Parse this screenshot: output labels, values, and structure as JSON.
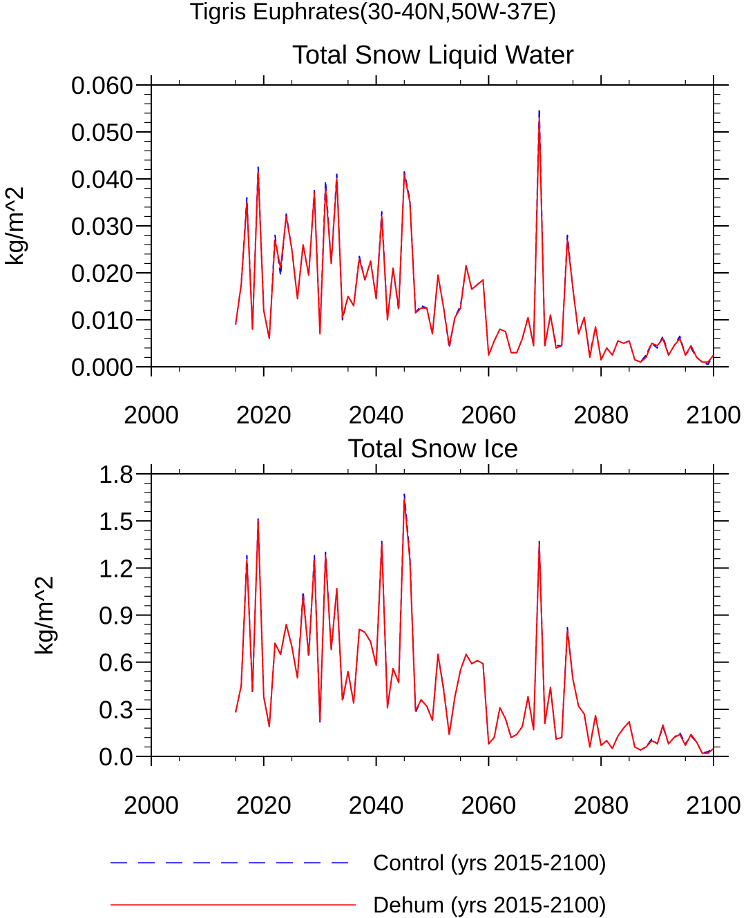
{
  "page_title": "Tigris Euphrates(30-40N,50W-37E)",
  "legend": {
    "entries": [
      {
        "label": "Control (yrs 2015-2100)",
        "color": "#0000ff",
        "style": "dashed"
      },
      {
        "label": "Dehum (yrs 2015-2100)",
        "color": "#ff0000",
        "style": "solid"
      }
    ],
    "placement": "bottom"
  },
  "chart_data": [
    {
      "type": "line",
      "title": "Total Snow Liquid Water",
      "xlabel": "",
      "ylabel": "kg/m^2",
      "xlim": [
        2000,
        2100
      ],
      "ylim": [
        0,
        0.06
      ],
      "xticks": [
        "2000",
        "2020",
        "2040",
        "2060",
        "2080",
        "2100"
      ],
      "yticks": [
        "0.000",
        "0.010",
        "0.020",
        "0.030",
        "0.040",
        "0.050",
        "0.060"
      ],
      "xtick_values": [
        2000,
        2020,
        2040,
        2060,
        2080,
        2100
      ],
      "ytick_values": [
        0,
        0.01,
        0.02,
        0.03,
        0.04,
        0.05,
        0.06
      ],
      "grid": false,
      "x_start": 2015,
      "series": [
        {
          "name": "Control (yrs 2015-2100)",
          "color": "#0000ff",
          "dash": "dashed",
          "values": [
            0.009,
            0.0175,
            0.036,
            0.008,
            0.0425,
            0.012,
            0.006,
            0.028,
            0.0195,
            0.0325,
            0.025,
            0.0145,
            0.026,
            0.0195,
            0.0375,
            0.0075,
            0.0395,
            0.022,
            0.041,
            0.01,
            0.015,
            0.013,
            0.0235,
            0.0185,
            0.0225,
            0.0145,
            0.033,
            0.01,
            0.021,
            0.012,
            0.0415,
            0.0355,
            0.0115,
            0.013,
            0.0125,
            0.007,
            0.0195,
            0.0125,
            0.004,
            0.0105,
            0.013,
            0.0215,
            0.0165,
            0.0175,
            0.0185,
            0.0025,
            0.0055,
            0.008,
            0.0075,
            0.003,
            0.003,
            0.006,
            0.0105,
            0.0045,
            0.055,
            0.0045,
            0.011,
            0.0045,
            0.0045,
            0.028,
            0.0165,
            0.007,
            0.0105,
            0.0025,
            0.0085,
            0.0015,
            0.004,
            0.0025,
            0.0055,
            0.005,
            0.0055,
            0.0015,
            0.001,
            0.0025,
            0.005,
            0.004,
            0.0065,
            0.0025,
            0.0045,
            0.0065,
            0.0025,
            0.004,
            0.002,
            0.001,
            0.0005,
            0.0025
          ]
        },
        {
          "name": "Dehum (yrs 2015-2100)",
          "color": "#ff0000",
          "dash": "solid",
          "values": [
            0.009,
            0.0175,
            0.035,
            0.008,
            0.0415,
            0.012,
            0.006,
            0.027,
            0.021,
            0.032,
            0.025,
            0.0145,
            0.026,
            0.0195,
            0.037,
            0.007,
            0.038,
            0.022,
            0.04,
            0.0105,
            0.015,
            0.013,
            0.023,
            0.0185,
            0.0225,
            0.0145,
            0.032,
            0.01,
            0.021,
            0.0125,
            0.041,
            0.035,
            0.0115,
            0.0125,
            0.0125,
            0.007,
            0.0195,
            0.0125,
            0.0045,
            0.0105,
            0.0125,
            0.0215,
            0.0165,
            0.0175,
            0.0185,
            0.0025,
            0.0055,
            0.008,
            0.0075,
            0.003,
            0.003,
            0.006,
            0.0105,
            0.0045,
            0.053,
            0.0045,
            0.011,
            0.004,
            0.0045,
            0.027,
            0.0165,
            0.007,
            0.0105,
            0.002,
            0.0085,
            0.0015,
            0.004,
            0.0025,
            0.0055,
            0.005,
            0.0055,
            0.0015,
            0.001,
            0.002,
            0.005,
            0.0045,
            0.006,
            0.0025,
            0.0045,
            0.006,
            0.0025,
            0.0045,
            0.002,
            0.001,
            0.001,
            0.0025
          ]
        }
      ]
    },
    {
      "type": "line",
      "title": "Total Snow Ice",
      "xlabel": "",
      "ylabel": "kg/m^2",
      "xlim": [
        2000,
        2100
      ],
      "ylim": [
        0,
        1.8
      ],
      "xticks": [
        "2000",
        "2020",
        "2040",
        "2060",
        "2080",
        "2100"
      ],
      "yticks": [
        "0.0",
        "0.3",
        "0.6",
        "0.9",
        "1.2",
        "1.5",
        "1.8"
      ],
      "xtick_values": [
        2000,
        2020,
        2040,
        2060,
        2080,
        2100
      ],
      "ytick_values": [
        0,
        0.3,
        0.6,
        0.9,
        1.2,
        1.5,
        1.8
      ],
      "grid": false,
      "x_start": 2015,
      "series": [
        {
          "name": "Control (yrs 2015-2100)",
          "color": "#0000ff",
          "dash": "dashed",
          "values": [
            0.28,
            0.45,
            1.28,
            0.4,
            1.52,
            0.38,
            0.19,
            0.72,
            0.65,
            0.84,
            0.7,
            0.5,
            1.05,
            0.63,
            1.28,
            0.22,
            1.3,
            0.68,
            1.06,
            0.35,
            0.54,
            0.34,
            0.81,
            0.79,
            0.73,
            0.58,
            1.37,
            0.31,
            0.56,
            0.47,
            1.67,
            1.28,
            0.28,
            0.36,
            0.32,
            0.23,
            0.65,
            0.43,
            0.14,
            0.38,
            0.55,
            0.65,
            0.59,
            0.61,
            0.59,
            0.08,
            0.12,
            0.31,
            0.24,
            0.12,
            0.14,
            0.19,
            0.38,
            0.17,
            1.37,
            0.21,
            0.44,
            0.11,
            0.12,
            0.82,
            0.49,
            0.32,
            0.27,
            0.06,
            0.26,
            0.07,
            0.1,
            0.05,
            0.13,
            0.18,
            0.22,
            0.06,
            0.04,
            0.06,
            0.11,
            0.08,
            0.19,
            0.08,
            0.12,
            0.15,
            0.08,
            0.13,
            0.09,
            0.02,
            0.03,
            0.05
          ]
        },
        {
          "name": "Dehum (yrs 2015-2100)",
          "color": "#ff0000",
          "dash": "solid",
          "values": [
            0.28,
            0.45,
            1.25,
            0.42,
            1.5,
            0.38,
            0.19,
            0.72,
            0.65,
            0.84,
            0.7,
            0.5,
            1.02,
            0.65,
            1.25,
            0.23,
            1.28,
            0.68,
            1.07,
            0.36,
            0.54,
            0.34,
            0.81,
            0.79,
            0.73,
            0.58,
            1.35,
            0.31,
            0.56,
            0.47,
            1.64,
            1.25,
            0.29,
            0.36,
            0.32,
            0.23,
            0.65,
            0.42,
            0.14,
            0.38,
            0.55,
            0.65,
            0.59,
            0.61,
            0.59,
            0.08,
            0.12,
            0.31,
            0.24,
            0.12,
            0.14,
            0.19,
            0.38,
            0.17,
            1.35,
            0.21,
            0.44,
            0.11,
            0.12,
            0.8,
            0.49,
            0.32,
            0.27,
            0.06,
            0.26,
            0.07,
            0.1,
            0.05,
            0.13,
            0.18,
            0.22,
            0.06,
            0.04,
            0.06,
            0.1,
            0.08,
            0.2,
            0.08,
            0.12,
            0.14,
            0.07,
            0.14,
            0.09,
            0.02,
            0.02,
            0.05
          ]
        }
      ]
    }
  ]
}
